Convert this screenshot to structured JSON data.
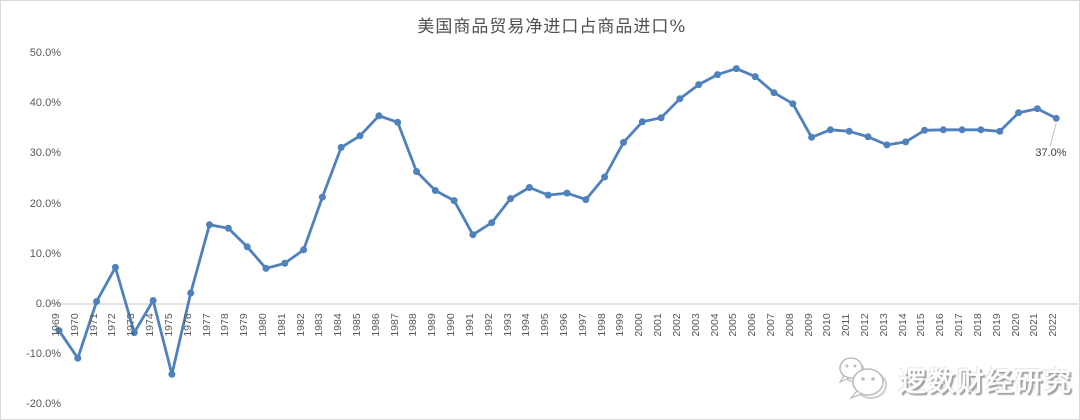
{
  "chart_data": {
    "type": "line",
    "title": "美国商品贸易净进口占商品进口%",
    "x": [
      1969,
      1970,
      1971,
      1972,
      1973,
      1974,
      1975,
      1976,
      1977,
      1978,
      1979,
      1980,
      1981,
      1982,
      1983,
      1984,
      1985,
      1986,
      1987,
      1988,
      1989,
      1990,
      1991,
      1992,
      1993,
      1994,
      1995,
      1996,
      1997,
      1998,
      1999,
      2000,
      2001,
      2002,
      2003,
      2004,
      2005,
      2006,
      2007,
      2008,
      2009,
      2010,
      2011,
      2012,
      2013,
      2014,
      2015,
      2016,
      2017,
      2018,
      2019,
      2020,
      2021,
      2022
    ],
    "series": [
      {
        "name": "美国商品贸易净进口占商品进口%",
        "values": [
          -5.3,
          -10.8,
          0.5,
          7.3,
          -5.7,
          0.7,
          -14.0,
          2.2,
          15.8,
          15.1,
          11.4,
          7.1,
          8.1,
          10.8,
          21.3,
          31.2,
          33.5,
          37.5,
          36.2,
          26.4,
          22.6,
          20.6,
          13.8,
          16.2,
          21.0,
          23.2,
          21.7,
          22.1,
          20.8,
          25.3,
          32.2,
          36.3,
          37.1,
          40.9,
          43.7,
          45.7,
          46.9,
          45.3,
          42.1,
          39.9,
          33.2,
          34.7,
          34.4,
          33.3,
          31.7,
          32.3,
          34.6,
          34.7,
          34.7,
          34.7,
          34.4,
          38.1,
          38.9,
          37.0
        ]
      }
    ],
    "xlabel": "",
    "ylabel": "",
    "ylim": [
      -20,
      50
    ],
    "ytick_values": [
      50,
      40,
      30,
      20,
      10,
      0,
      -10,
      -20
    ],
    "ytick_labels": [
      "50.0%",
      "40.0%",
      "30.0%",
      "20.0%",
      "10.0%",
      "0.0%",
      "-10.0%",
      "-20.0%"
    ],
    "grid": false,
    "legend_position": "none",
    "end_point_label": "37.0%",
    "marker": "circle",
    "colors": {
      "line": "#4f81bd",
      "axis_line": "#c9c9c9",
      "leader_line": "#bdbdbd",
      "tick_text": "#595959",
      "title_text": "#4f4f4f",
      "point_label_text": "#3f3f3f"
    }
  },
  "watermark": {
    "icon": "wechat-icon",
    "text": "逻数财经研究"
  }
}
